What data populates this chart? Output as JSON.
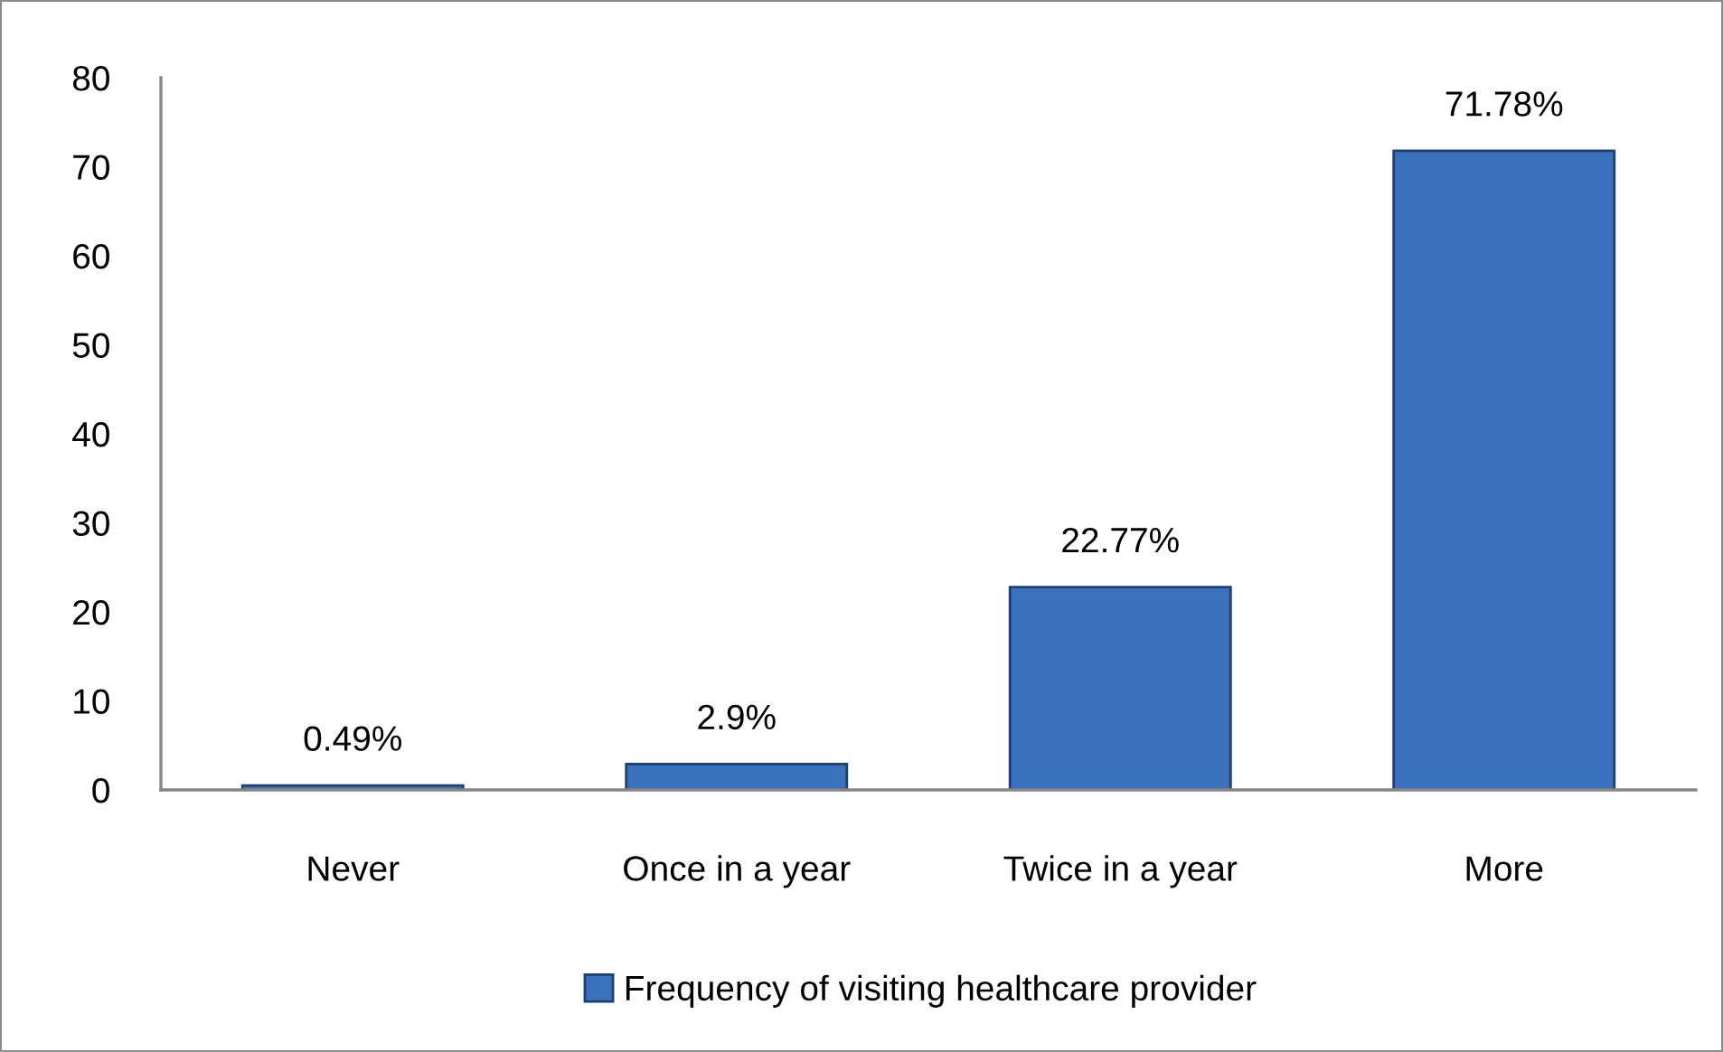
{
  "chart_data": {
    "type": "bar",
    "categories": [
      "Never",
      "Once in a year",
      "Twice in a year",
      "More"
    ],
    "series": [
      {
        "name": "Frequency of visiting healthcare provider",
        "color": "#3a72bd",
        "values": [
          0.49,
          2.9,
          22.77,
          71.78
        ],
        "value_labels": [
          "0.49%",
          "2.9%",
          "22.77%",
          "71.78%"
        ]
      }
    ],
    "ylim": [
      0,
      80
    ],
    "yticks": [
      0,
      10,
      20,
      30,
      40,
      50,
      60,
      70,
      80
    ],
    "grid": false,
    "legend": "bottom"
  }
}
